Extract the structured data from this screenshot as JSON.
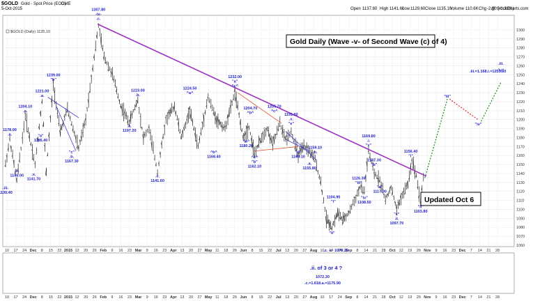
{
  "header": {
    "symbol": "$GOLD",
    "name": "Gold - Spot Price (EOD)",
    "exchange": "CME",
    "date": "5-Oct-2015",
    "open_label": "Open",
    "open": "1137.80",
    "high_label": "High",
    "high": "1141.60",
    "low_label": "Low",
    "low": "1129.60",
    "close_label": "Close",
    "close": "1135.10",
    "volume_label": "Volume",
    "volume": "110.6K",
    "chg_label": "Chg",
    "chg": "-2.60 (-0.23%)",
    "watermark": "@ StockCharts.com"
  },
  "legend": "$GOLD (Daily) 1135.10",
  "colors": {
    "bars": "#222222",
    "labels": "#1c1ccc",
    "trendline": "#9b2fc4",
    "wedge_lines": "#3a3ad0",
    "channel_lines": "#e05030",
    "projection_up": "#1a8a1a",
    "projection_down": "#dd2222",
    "arrow_up": "#1a8a1a"
  },
  "annotations": {
    "title_box": "Gold Daily (Wave -v- of Second Wave (c) of 4)",
    "updated_box": "Updated Oct 6",
    "target_label": ".iii.=1.168.i.=1255.80"
  },
  "bottom_panel": {
    "lines": [
      ".ii. of 3 or 4  ?",
      "1072.30",
      ".c.=1.618.a.=1175.90"
    ]
  },
  "chart_data": {
    "type": "ohlc",
    "ylim": [
      1060,
      1310
    ],
    "y_ticks": [
      1060,
      1070,
      1080,
      1090,
      1100,
      1110,
      1120,
      1130,
      1140,
      1150,
      1160,
      1170,
      1180,
      1190,
      1200,
      1210,
      1220,
      1230,
      1240,
      1250,
      1260,
      1270,
      1280,
      1290,
      1300
    ],
    "x_tick_labels": [
      "10",
      "17",
      "24",
      "Dec",
      "8",
      "15",
      "22",
      "2015",
      "12",
      "20",
      "26",
      "Feb",
      "9",
      "16",
      "23",
      "Mar",
      "9",
      "16",
      "23",
      "Apr",
      "13",
      "20",
      "27",
      "May",
      "11",
      "18",
      "26",
      "Jun",
      "8",
      "15",
      "22",
      "Jul",
      "13",
      "20",
      "27",
      "Aug",
      "10",
      "17",
      "24",
      "Sep",
      "8",
      "14",
      "21",
      "28",
      "Oct",
      "12",
      "19",
      "26",
      "Nov",
      "9",
      "16",
      "23",
      "Dec",
      "7",
      "14",
      "21",
      "28"
    ],
    "price_anchors": [
      {
        "t": 0,
        "p": 1150
      },
      {
        "t": 3,
        "p": 1178
      },
      {
        "t": 8,
        "p": 1132
      },
      {
        "t": 14,
        "p": 1204
      },
      {
        "t": 21,
        "p": 1150
      },
      {
        "t": 26,
        "p": 1221
      },
      {
        "t": 29,
        "p": 1142
      },
      {
        "t": 34,
        "p": 1239
      },
      {
        "t": 39,
        "p": 1186
      },
      {
        "t": 44,
        "p": 1212
      },
      {
        "t": 52,
        "p": 1168
      },
      {
        "t": 57,
        "p": 1200
      },
      {
        "t": 66,
        "p": 1305
      },
      {
        "t": 70,
        "p": 1270
      },
      {
        "t": 76,
        "p": 1250
      },
      {
        "t": 82,
        "p": 1215
      },
      {
        "t": 88,
        "p": 1197
      },
      {
        "t": 94,
        "p": 1222
      },
      {
        "t": 98,
        "p": 1180
      },
      {
        "t": 102,
        "p": 1190
      },
      {
        "t": 108,
        "p": 1142
      },
      {
        "t": 114,
        "p": 1200
      },
      {
        "t": 120,
        "p": 1215
      },
      {
        "t": 125,
        "p": 1180
      },
      {
        "t": 131,
        "p": 1210
      },
      {
        "t": 137,
        "p": 1170
      },
      {
        "t": 144,
        "p": 1225
      },
      {
        "t": 150,
        "p": 1200
      },
      {
        "t": 156,
        "p": 1190
      },
      {
        "t": 163,
        "p": 1230
      },
      {
        "t": 169,
        "p": 1180
      },
      {
        "t": 173,
        "p": 1192
      },
      {
        "t": 177,
        "p": 1162
      },
      {
        "t": 182,
        "p": 1180
      },
      {
        "t": 186,
        "p": 1190
      },
      {
        "t": 190,
        "p": 1172
      },
      {
        "t": 195,
        "p": 1196
      },
      {
        "t": 199,
        "p": 1178
      },
      {
        "t": 203,
        "p": 1187
      },
      {
        "t": 208,
        "p": 1160
      },
      {
        "t": 212,
        "p": 1170
      },
      {
        "t": 216,
        "p": 1165
      },
      {
        "t": 220,
        "p": 1155
      },
      {
        "t": 224,
        "p": 1130
      },
      {
        "t": 228,
        "p": 1090
      },
      {
        "t": 232,
        "p": 1080
      },
      {
        "t": 236,
        "p": 1096
      },
      {
        "t": 240,
        "p": 1088
      },
      {
        "t": 244,
        "p": 1096
      },
      {
        "t": 248,
        "p": 1110
      },
      {
        "t": 252,
        "p": 1124
      },
      {
        "t": 255,
        "p": 1120
      },
      {
        "t": 258,
        "p": 1165
      },
      {
        "t": 262,
        "p": 1140
      },
      {
        "t": 266,
        "p": 1133
      },
      {
        "t": 270,
        "p": 1110
      },
      {
        "t": 274,
        "p": 1125
      },
      {
        "t": 278,
        "p": 1100
      },
      {
        "t": 282,
        "p": 1116
      },
      {
        "t": 286,
        "p": 1128
      },
      {
        "t": 289,
        "p": 1155
      },
      {
        "t": 292,
        "p": 1138
      },
      {
        "t": 295,
        "p": 1108
      },
      {
        "t": 297,
        "p": 1135
      }
    ],
    "wave_labels": [
      {
        "lines": [
          "1178.00",
          ".a."
        ],
        "t": 3,
        "p": 1180,
        "pos": "above"
      },
      {
        "lines": [
          "1204.10",
          ".a."
        ],
        "t": 14,
        "p": 1206,
        "pos": "above"
      },
      {
        "lines": [
          "1221.00",
          ".a."
        ],
        "t": 26,
        "p": 1223,
        "pos": "above"
      },
      {
        "lines": [
          "1239.00",
          "\"b\""
        ],
        "t": 34,
        "p": 1241,
        "pos": "above"
      },
      {
        "lines": [
          "1307.80",
          "-iv-",
          ".c."
        ],
        "t": 66,
        "p": 1309,
        "pos": "above"
      },
      {
        "lines": [
          "1223.00",
          ".b."
        ],
        "t": 94,
        "p": 1224,
        "pos": "above"
      },
      {
        "lines": [
          "1224.50",
          "^a^"
        ],
        "t": 131,
        "p": 1226,
        "pos": "above"
      },
      {
        "lines": [
          "1232.00",
          "\"a\"",
          "^c^"
        ],
        "t": 163,
        "p": 1234,
        "pos": "above"
      },
      {
        "lines": [
          "1204.70",
          "^b^"
        ],
        "t": 174,
        "p": 1204,
        "pos": "above"
      },
      {
        "lines": [
          "1205.70",
          "^c^"
        ],
        "t": 191,
        "p": 1206,
        "pos": "above"
      },
      {
        "lines": [
          "1191.60",
          ".x.",
          "\"e\""
        ],
        "t": 203,
        "p": 1192,
        "pos": "above"
      },
      {
        "lines": [
          "1169.80",
          ".i.",
          "\"v\""
        ],
        "t": 258,
        "p": 1168,
        "pos": "above"
      },
      {
        "lines": [
          "1156.40",
          "\"i\""
        ],
        "t": 288,
        "p": 1156,
        "pos": "above"
      },
      {
        "lines": [
          "1147.30",
          "\"b\""
        ],
        "t": 262,
        "p": 1146,
        "pos": "above"
      },
      {
        "lines": [
          "1126.30",
          "\"iii\""
        ],
        "t": 251,
        "p": 1126,
        "pos": "above"
      },
      {
        "lines": [
          "1104.90",
          "\"i\""
        ],
        "t": 233,
        "p": 1105,
        "pos": "above"
      },
      {
        "lines": [
          "1159.10",
          ".b."
        ],
        "t": 220,
        "p": 1160,
        "pos": "above"
      },
      {
        "lines": [
          "-iii-",
          "1130.40"
        ],
        "t": 0,
        "p": 1128,
        "pos": "below"
      },
      {
        "lines": [
          ".b.",
          "1146.00"
        ],
        "t": 8,
        "p": 1147,
        "pos": "below"
      },
      {
        "lines": [
          ".x.",
          "1141.70"
        ],
        "t": 20,
        "p": 1143,
        "pos": "below"
      },
      {
        "lines": [
          "\"a\"",
          "1186.40"
        ],
        "t": 25,
        "p": 1186,
        "pos": "below"
      },
      {
        "lines": [
          "\"c\"",
          ".b.",
          "1167.30"
        ],
        "t": 47,
        "p": 1168,
        "pos": "below"
      },
      {
        "lines": [
          ".a.",
          "1197.20"
        ],
        "t": 88,
        "p": 1197,
        "pos": "below"
      },
      {
        "lines": [
          ".c.",
          "1141.60"
        ],
        "t": 108,
        "p": 1141,
        "pos": "below"
      },
      {
        "lines": [
          "^b^",
          "1168.40"
        ],
        "t": 148,
        "p": 1168,
        "pos": "below"
      },
      {
        "lines": [
          "^a^",
          "1180.20"
        ],
        "t": 171,
        "p": 1180,
        "pos": "below"
      },
      {
        "lines": [
          "^c^",
          "\"b\"",
          "1162.10"
        ],
        "t": 177,
        "p": 1162,
        "pos": "below"
      },
      {
        "lines": [
          "\"d\"",
          "1168.10"
        ],
        "t": 208,
        "p": 1168,
        "pos": "below"
      },
      {
        "lines": [
          ".a.",
          "1155.80"
        ],
        "t": 216,
        "p": 1155,
        "pos": "below"
      },
      {
        "lines": [
          "\"ii\""
        ],
        "t": 232,
        "p": 1078,
        "pos": "below"
      },
      {
        "lines": [
          "\"iv\"",
          "1108.50"
        ],
        "t": 255,
        "p": 1117,
        "pos": "below"
      },
      {
        "lines": [
          "\"a\"",
          "1117.00"
        ],
        "t": 266,
        "p": 1129,
        "pos": "below"
      },
      {
        "lines": [
          "\"c\"",
          ".ii.",
          "1097.70"
        ],
        "t": 278,
        "p": 1099,
        "pos": "below"
      },
      {
        "lines": [
          "\"ii\"",
          "1103.80"
        ],
        "t": 295,
        "p": 1107,
        "pos": "below"
      }
    ],
    "low_label": ".z.  -v- 1078.20",
    "low_sub": "(c)",
    "projection": [
      {
        "label": "\"iii\"",
        "t": 314,
        "p": 1223
      },
      {
        "label": "\"iv\"",
        "t": 336,
        "p": 1195
      },
      {
        "label": ".iii.",
        "t": 352,
        "p": 1248
      },
      {
        "label": "\"v\"",
        "t": 352,
        "p": 1246
      }
    ]
  }
}
